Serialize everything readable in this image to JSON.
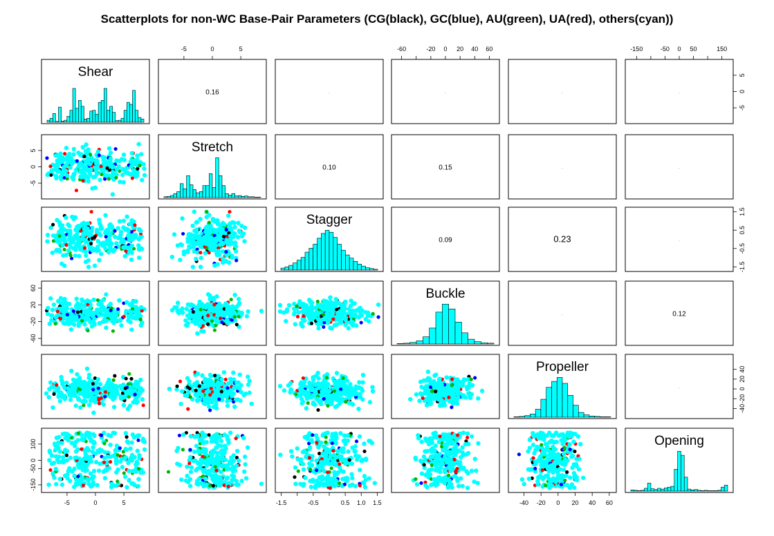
{
  "chart_data": {
    "type": "scatter",
    "title": "Scatterplots for non-WC Base-Pair Parameters (CG(black), GC(blue), AU(green), UA(red), others(cyan))",
    "series": [
      {
        "name": "CG",
        "color": "#000000"
      },
      {
        "name": "GC",
        "color": "#0000ff"
      },
      {
        "name": "AU",
        "color": "#00b800"
      },
      {
        "name": "UA",
        "color": "#ff0000"
      },
      {
        "name": "others",
        "color": "#00ffff"
      }
    ],
    "variables": [
      {
        "name": "Shear",
        "range": [
          -9,
          9
        ],
        "ticks": [
          -5,
          0,
          5
        ],
        "tick_labels": [
          "-5",
          "0",
          "5"
        ]
      },
      {
        "name": "Stretch",
        "range": [
          -9,
          9
        ],
        "ticks": [
          -5,
          0,
          5
        ],
        "tick_labels": [
          "-5",
          "0",
          "5"
        ]
      },
      {
        "name": "Stagger",
        "range": [
          -1.6,
          1.6
        ],
        "ticks": [
          -1.5,
          -1.0,
          -0.5,
          0,
          0.5,
          1.0,
          1.5
        ],
        "tick_labels": [
          "-1.5",
          "",
          "-0.5",
          "",
          "0.5",
          "1.0",
          "1.5"
        ],
        "right_tick_labels": [
          "-1.5",
          "-0.5",
          "0.5",
          "1.5"
        ],
        "right_ticks": [
          -1.5,
          -0.5,
          0.5,
          1.5
        ]
      },
      {
        "name": "Buckle",
        "range": [
          -70,
          70
        ],
        "ticks": [
          -60,
          -40,
          -20,
          0,
          20,
          40,
          60
        ],
        "tick_labels": [
          "-60",
          "",
          "-20",
          "0",
          "20",
          "40",
          "60"
        ],
        "left_ticks": [
          -60,
          -20,
          20,
          60
        ],
        "left_tick_labels": [
          "-60",
          "-20",
          "20",
          "60"
        ]
      },
      {
        "name": "Propeller",
        "range": [
          -55,
          65
        ],
        "ticks": [
          -40,
          -20,
          0,
          20,
          40,
          60
        ],
        "tick_labels": [
          "-40",
          "-20",
          "0",
          "20",
          "40",
          "60"
        ],
        "right_ticks": [
          -40,
          -20,
          0,
          20,
          40
        ],
        "right_tick_labels": [
          "-40",
          "-20",
          "0",
          "20",
          "40"
        ]
      },
      {
        "name": "Opening",
        "range": [
          -180,
          180
        ],
        "ticks": [
          -150,
          -100,
          -50,
          0,
          50,
          100,
          150
        ],
        "tick_labels": [
          "-150",
          "",
          "-50",
          "0",
          "50",
          "",
          "150"
        ],
        "left_ticks": [
          -150,
          -50,
          0,
          100
        ],
        "left_tick_labels": [
          "-150",
          "-50",
          "0",
          "100"
        ]
      }
    ],
    "correlations": [
      {
        "row": 0,
        "col": 1,
        "label": "0.16"
      },
      {
        "row": 0,
        "col": 2,
        "label": "-"
      },
      {
        "row": 0,
        "col": 3,
        "label": "-"
      },
      {
        "row": 0,
        "col": 4,
        "label": "-"
      },
      {
        "row": 0,
        "col": 5,
        "label": "-"
      },
      {
        "row": 1,
        "col": 2,
        "label": "0.10"
      },
      {
        "row": 1,
        "col": 3,
        "label": "0.15"
      },
      {
        "row": 1,
        "col": 4,
        "label": "-"
      },
      {
        "row": 1,
        "col": 5,
        "label": "-"
      },
      {
        "row": 2,
        "col": 3,
        "label": "0.09"
      },
      {
        "row": 2,
        "col": 4,
        "label": "0.23"
      },
      {
        "row": 2,
        "col": 5,
        "label": "-"
      },
      {
        "row": 3,
        "col": 4,
        "label": "-"
      },
      {
        "row": 3,
        "col": 5,
        "label": "0.12"
      },
      {
        "row": 4,
        "col": 5,
        "label": "-"
      }
    ],
    "histograms": {
      "Shear": [
        0.05,
        0.1,
        0.22,
        0.02,
        0.38,
        0.03,
        0.05,
        0.15,
        0.3,
        0.85,
        0.35,
        0.55,
        0.4,
        0.08,
        0.1,
        0.28,
        0.3,
        0.2,
        0.5,
        0.55,
        0.85,
        0.3,
        0.4,
        0.25,
        0.04,
        0.05,
        0.1,
        0.3,
        0.5,
        0.45,
        0.8,
        0.3,
        0.12,
        0.08
      ],
      "Stretch": [
        0.02,
        0.03,
        0.05,
        0.1,
        0.15,
        0.35,
        0.22,
        0.55,
        0.32,
        0.2,
        0.12,
        0.15,
        0.3,
        0.3,
        0.6,
        0.25,
        1.0,
        0.55,
        0.3,
        0.1,
        0.06,
        0.1,
        0.04,
        0.05,
        0.03,
        0.04,
        0.02,
        0.02,
        0.01,
        0.01
      ],
      "Stagger": [
        0.05,
        0.08,
        0.12,
        0.18,
        0.25,
        0.32,
        0.45,
        0.55,
        0.65,
        0.8,
        0.92,
        1.0,
        0.95,
        0.82,
        0.65,
        0.5,
        0.38,
        0.3,
        0.22,
        0.15,
        0.1,
        0.06,
        0.04,
        0.02
      ],
      "Buckle": [
        0.01,
        0.02,
        0.04,
        0.08,
        0.18,
        0.4,
        0.8,
        1.0,
        0.88,
        0.55,
        0.28,
        0.12,
        0.06,
        0.03,
        0.02
      ],
      "Propeller": [
        0.01,
        0.02,
        0.04,
        0.08,
        0.2,
        0.45,
        0.75,
        0.9,
        1.0,
        0.85,
        0.55,
        0.3,
        0.12,
        0.06,
        0.03,
        0.02,
        0.01,
        0.01
      ],
      "Opening": [
        0.03,
        0.02,
        0.01,
        0.02,
        0.07,
        0.2,
        0.06,
        0.04,
        0.07,
        0.05,
        0.08,
        0.1,
        0.12,
        0.55,
        1.0,
        0.9,
        0.35,
        0.05,
        0.03,
        0.04,
        0.02,
        0.01,
        0.02,
        0.01,
        0.01,
        0.01,
        0.02,
        0.1,
        0.15
      ]
    }
  }
}
